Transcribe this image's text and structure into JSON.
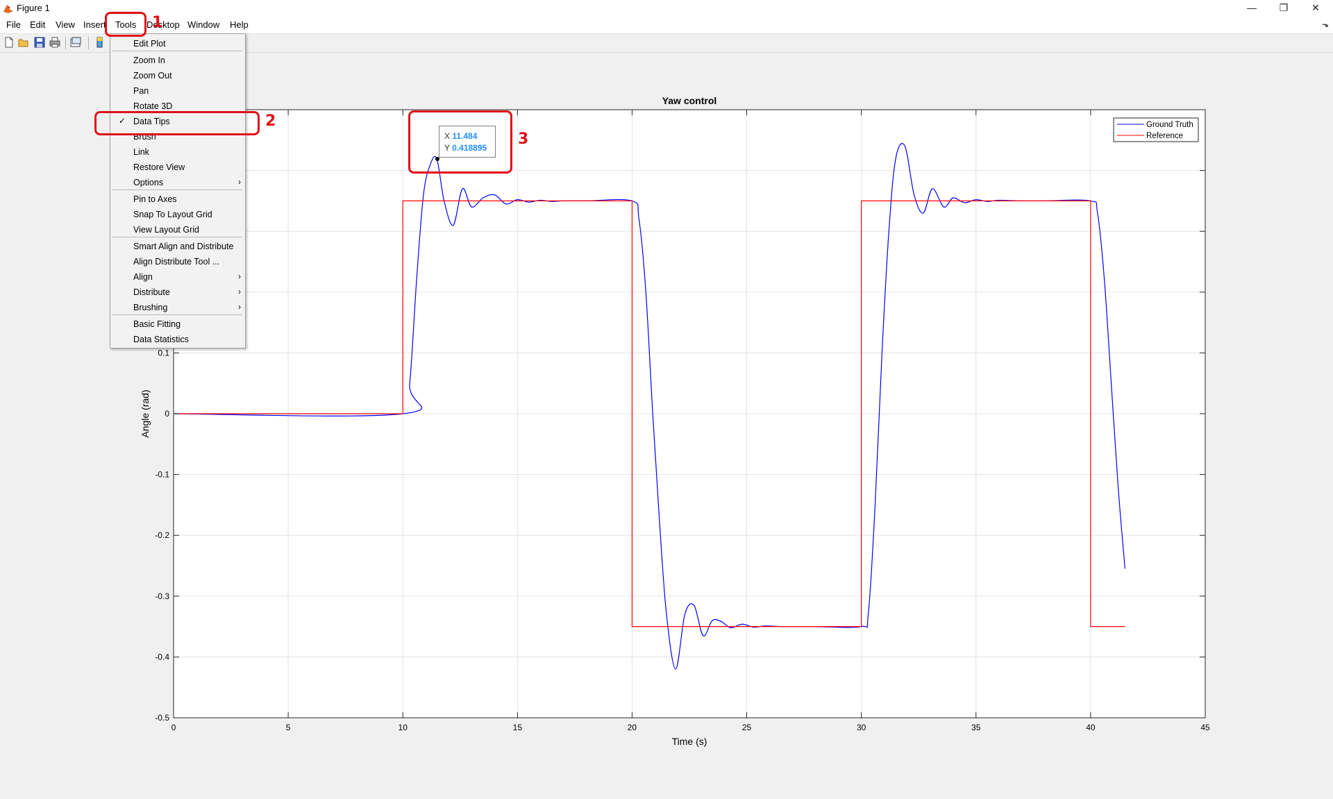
{
  "window": {
    "title": "Figure 1",
    "minimize": "—",
    "restore": "❐",
    "close": "✕"
  },
  "menubar": {
    "items": [
      "File",
      "Edit",
      "View",
      "Insert",
      "Tools",
      "Desktop",
      "Window",
      "Help"
    ],
    "dock_arrow": "⬎"
  },
  "toolbar": {
    "buttons": [
      "new-figure",
      "open-file",
      "save",
      "print",
      "link-plot",
      "insert-colorbar"
    ]
  },
  "tools_menu": {
    "items": [
      {
        "label": "Edit Plot"
      },
      {
        "label": "Zoom In"
      },
      {
        "label": "Zoom Out"
      },
      {
        "label": "Pan"
      },
      {
        "label": "Rotate 3D"
      },
      {
        "label": "Data Tips",
        "checked": true
      },
      {
        "label": "Brush"
      },
      {
        "label": "Link"
      },
      {
        "label": "Restore View"
      },
      {
        "label": "Options",
        "submenu": true
      },
      {
        "label": "Pin to Axes"
      },
      {
        "label": "Snap To Layout Grid"
      },
      {
        "label": "View Layout Grid"
      },
      {
        "label": "Smart Align and Distribute"
      },
      {
        "label": "Align Distribute Tool ..."
      },
      {
        "label": "Align",
        "submenu": true
      },
      {
        "label": "Distribute",
        "submenu": true
      },
      {
        "label": "Brushing",
        "submenu": true
      },
      {
        "label": "Basic Fitting"
      },
      {
        "label": "Data Statistics"
      }
    ],
    "check_glyph": "✓",
    "submenu_glyph": "›"
  },
  "annotations": {
    "labels": [
      "1",
      "2",
      "3"
    ],
    "color": "#e0101a"
  },
  "datatip": {
    "x_key": "X",
    "x_value": "11.484",
    "y_key": "Y",
    "y_value": "0.418895"
  },
  "chart_data": {
    "type": "line",
    "title": "Yaw control",
    "xlabel": "Time (s)",
    "ylabel": "Angle (rad)",
    "xlim": [
      0,
      45
    ],
    "ylim": [
      -0.5,
      0.5
    ],
    "xticks": [
      0,
      5,
      10,
      15,
      20,
      25,
      30,
      35,
      40,
      45
    ],
    "yticks": [
      -0.5,
      -0.4,
      -0.3,
      -0.2,
      -0.1,
      0,
      0.1
    ],
    "grid": true,
    "legend": {
      "placement": "top-right",
      "entries": [
        "Ground Truth",
        "Reference"
      ]
    },
    "series": [
      {
        "name": "Ground Truth",
        "color": "#0000ff",
        "x": [
          0,
          10,
          10.3,
          10.6,
          10.9,
          11.2,
          11.484,
          11.8,
          12.2,
          12.6,
          13.0,
          13.5,
          14.0,
          14.5,
          15.0,
          15.5,
          16.0,
          16.5,
          17.0,
          18.0,
          20.0,
          20.3,
          20.6,
          20.9,
          21.2,
          21.5,
          21.9,
          22.3,
          22.7,
          23.1,
          23.5,
          23.9,
          24.3,
          24.8,
          25.3,
          25.8,
          26.5,
          27.0,
          28.0,
          30.0,
          30.3,
          30.6,
          30.9,
          31.2,
          31.5,
          31.9,
          32.3,
          32.7,
          33.1,
          33.6,
          34.0,
          34.5,
          35.0,
          35.5,
          36.0,
          37.0,
          38.0,
          40.0,
          40.3,
          40.6,
          40.9,
          41.2,
          41.5
        ],
        "y": [
          0,
          0,
          0.05,
          0.22,
          0.36,
          0.41,
          0.418895,
          0.35,
          0.31,
          0.37,
          0.34,
          0.355,
          0.36,
          0.345,
          0.352,
          0.348,
          0.351,
          0.349,
          0.35,
          0.35,
          0.35,
          0.32,
          0.2,
          0.0,
          -0.18,
          -0.33,
          -0.42,
          -0.33,
          -0.315,
          -0.365,
          -0.34,
          -0.342,
          -0.352,
          -0.346,
          -0.351,
          -0.349,
          -0.35,
          -0.35,
          -0.35,
          -0.35,
          -0.33,
          -0.15,
          0.1,
          0.3,
          0.42,
          0.44,
          0.36,
          0.33,
          0.37,
          0.34,
          0.355,
          0.347,
          0.352,
          0.349,
          0.351,
          0.35,
          0.35,
          0.35,
          0.33,
          0.22,
          0.05,
          -0.12,
          -0.255
        ]
      },
      {
        "name": "Reference",
        "color": "#ff0000",
        "x": [
          0,
          10,
          10,
          20,
          20,
          30,
          30,
          40,
          40,
          41.5
        ],
        "y": [
          0,
          0,
          0.35,
          0.35,
          -0.35,
          -0.35,
          0.35,
          0.35,
          -0.35,
          -0.35
        ]
      }
    ]
  }
}
